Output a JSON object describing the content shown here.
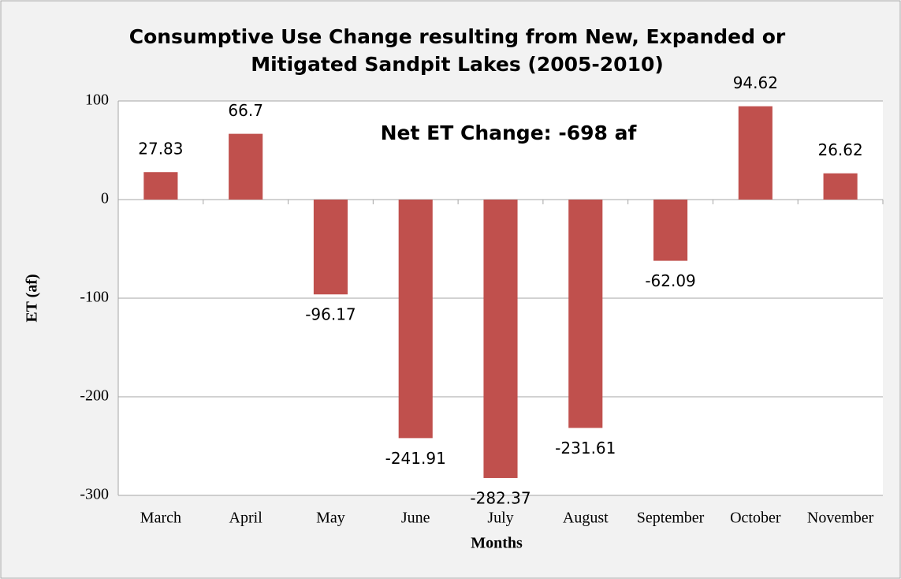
{
  "chart_data": {
    "type": "bar",
    "title": [
      "Consumptive Use Change resulting from New, Expanded or",
      "Mitigated Sandpit Lakes (2005-2010)"
    ],
    "annotation": "Net ET Change: -698 af",
    "x_label": "Months",
    "y_label": "ET (af)",
    "categories": [
      "March",
      "April",
      "May",
      "June",
      "July",
      "August",
      "September",
      "October",
      "November"
    ],
    "values": [
      27.83,
      66.7,
      -96.17,
      -241.91,
      -282.37,
      -231.61,
      -62.09,
      94.62,
      26.62
    ],
    "color": "#c0504d",
    "ylim": [
      -300,
      100
    ],
    "yticks": [
      -300,
      -200,
      -100,
      0,
      100
    ],
    "grid": true
  }
}
